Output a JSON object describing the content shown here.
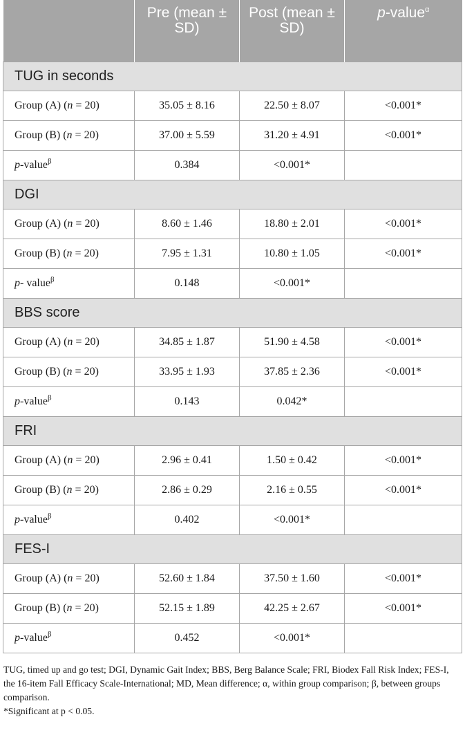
{
  "header": {
    "col0": "",
    "col1": "Pre (mean ± SD)",
    "col2": "Post (mean ± SD)",
    "col3_italic": "p",
    "col3_rest": "-value",
    "col3_sup": "α"
  },
  "sections": [
    {
      "title": "TUG in seconds",
      "rows": [
        {
          "label": "Group (A) (n = 20)",
          "pre": "35.05 ± 8.16",
          "post": "22.50 ± 8.07",
          "p": "<0.001*"
        },
        {
          "label": "Group (B) (n = 20)",
          "pre": "37.00 ± 5.59",
          "post": "31.20 ± 4.91",
          "p": "<0.001*"
        }
      ],
      "pval": {
        "label_italic": "p",
        "label_rest": "-value",
        "sup": "β",
        "pre": "0.384",
        "post": "<0.001*"
      }
    },
    {
      "title": "DGI",
      "rows": [
        {
          "label": "Group (A) (n = 20)",
          "pre": "8.60 ± 1.46",
          "post": "18.80 ± 2.01",
          "p": "<0.001*"
        },
        {
          "label": "Group (B) (n = 20)",
          "pre": "7.95 ± 1.31",
          "post": "10.80 ± 1.05",
          "p": "<0.001*"
        }
      ],
      "pval": {
        "label_italic": "p",
        "label_rest": "- value",
        "sup": "β",
        "pre": "0.148",
        "post": "<0.001*"
      }
    },
    {
      "title": "BBS score",
      "rows": [
        {
          "label": "Group (A) (n = 20)",
          "pre": "34.85 ± 1.87",
          "post": "51.90 ± 4.58",
          "p": "<0.001*"
        },
        {
          "label": "Group (B) (n = 20)",
          "pre": "33.95 ± 1.93",
          "post": "37.85 ± 2.36",
          "p": "<0.001*"
        }
      ],
      "pval": {
        "label_italic": "p",
        "label_rest": "-value",
        "sup": "β",
        "pre": "0.143",
        "post": "0.042*"
      }
    },
    {
      "title": "FRI",
      "rows": [
        {
          "label": "Group (A) (n = 20)",
          "pre": "2.96 ± 0.41",
          "post": "1.50 ± 0.42",
          "p": "<0.001*"
        },
        {
          "label": "Group (B) (n = 20)",
          "pre": "2.86 ± 0.29",
          "post": "2.16 ± 0.55",
          "p": "<0.001*"
        }
      ],
      "pval": {
        "label_italic": "p",
        "label_rest": "-value",
        "sup": "β",
        "pre": "0.402",
        "post": "<0.001*"
      }
    },
    {
      "title": "FES-I",
      "rows": [
        {
          "label": "Group (A) (n = 20)",
          "pre": "52.60 ± 1.84",
          "post": "37.50 ± 1.60",
          "p": "<0.001*"
        },
        {
          "label": "Group (B) (n = 20)",
          "pre": "52.15 ± 1.89",
          "post": "42.25 ± 2.67",
          "p": "<0.001*"
        }
      ],
      "pval": {
        "label_italic": "p",
        "label_rest": "-value",
        "sup": "β",
        "pre": "0.452",
        "post": "<0.001*"
      }
    }
  ],
  "footnote": {
    "abbreviations": "TUG, timed up and go test; DGI, Dynamic Gait Index; BBS, Berg Balance Scale; FRI, Biodex Fall Risk Index; FES-I, the 16-item Fall Efficacy Scale-International; MD, Mean difference; α, within group comparison; β, between groups comparison.",
    "significance": "*Significant at p < 0.05."
  }
}
